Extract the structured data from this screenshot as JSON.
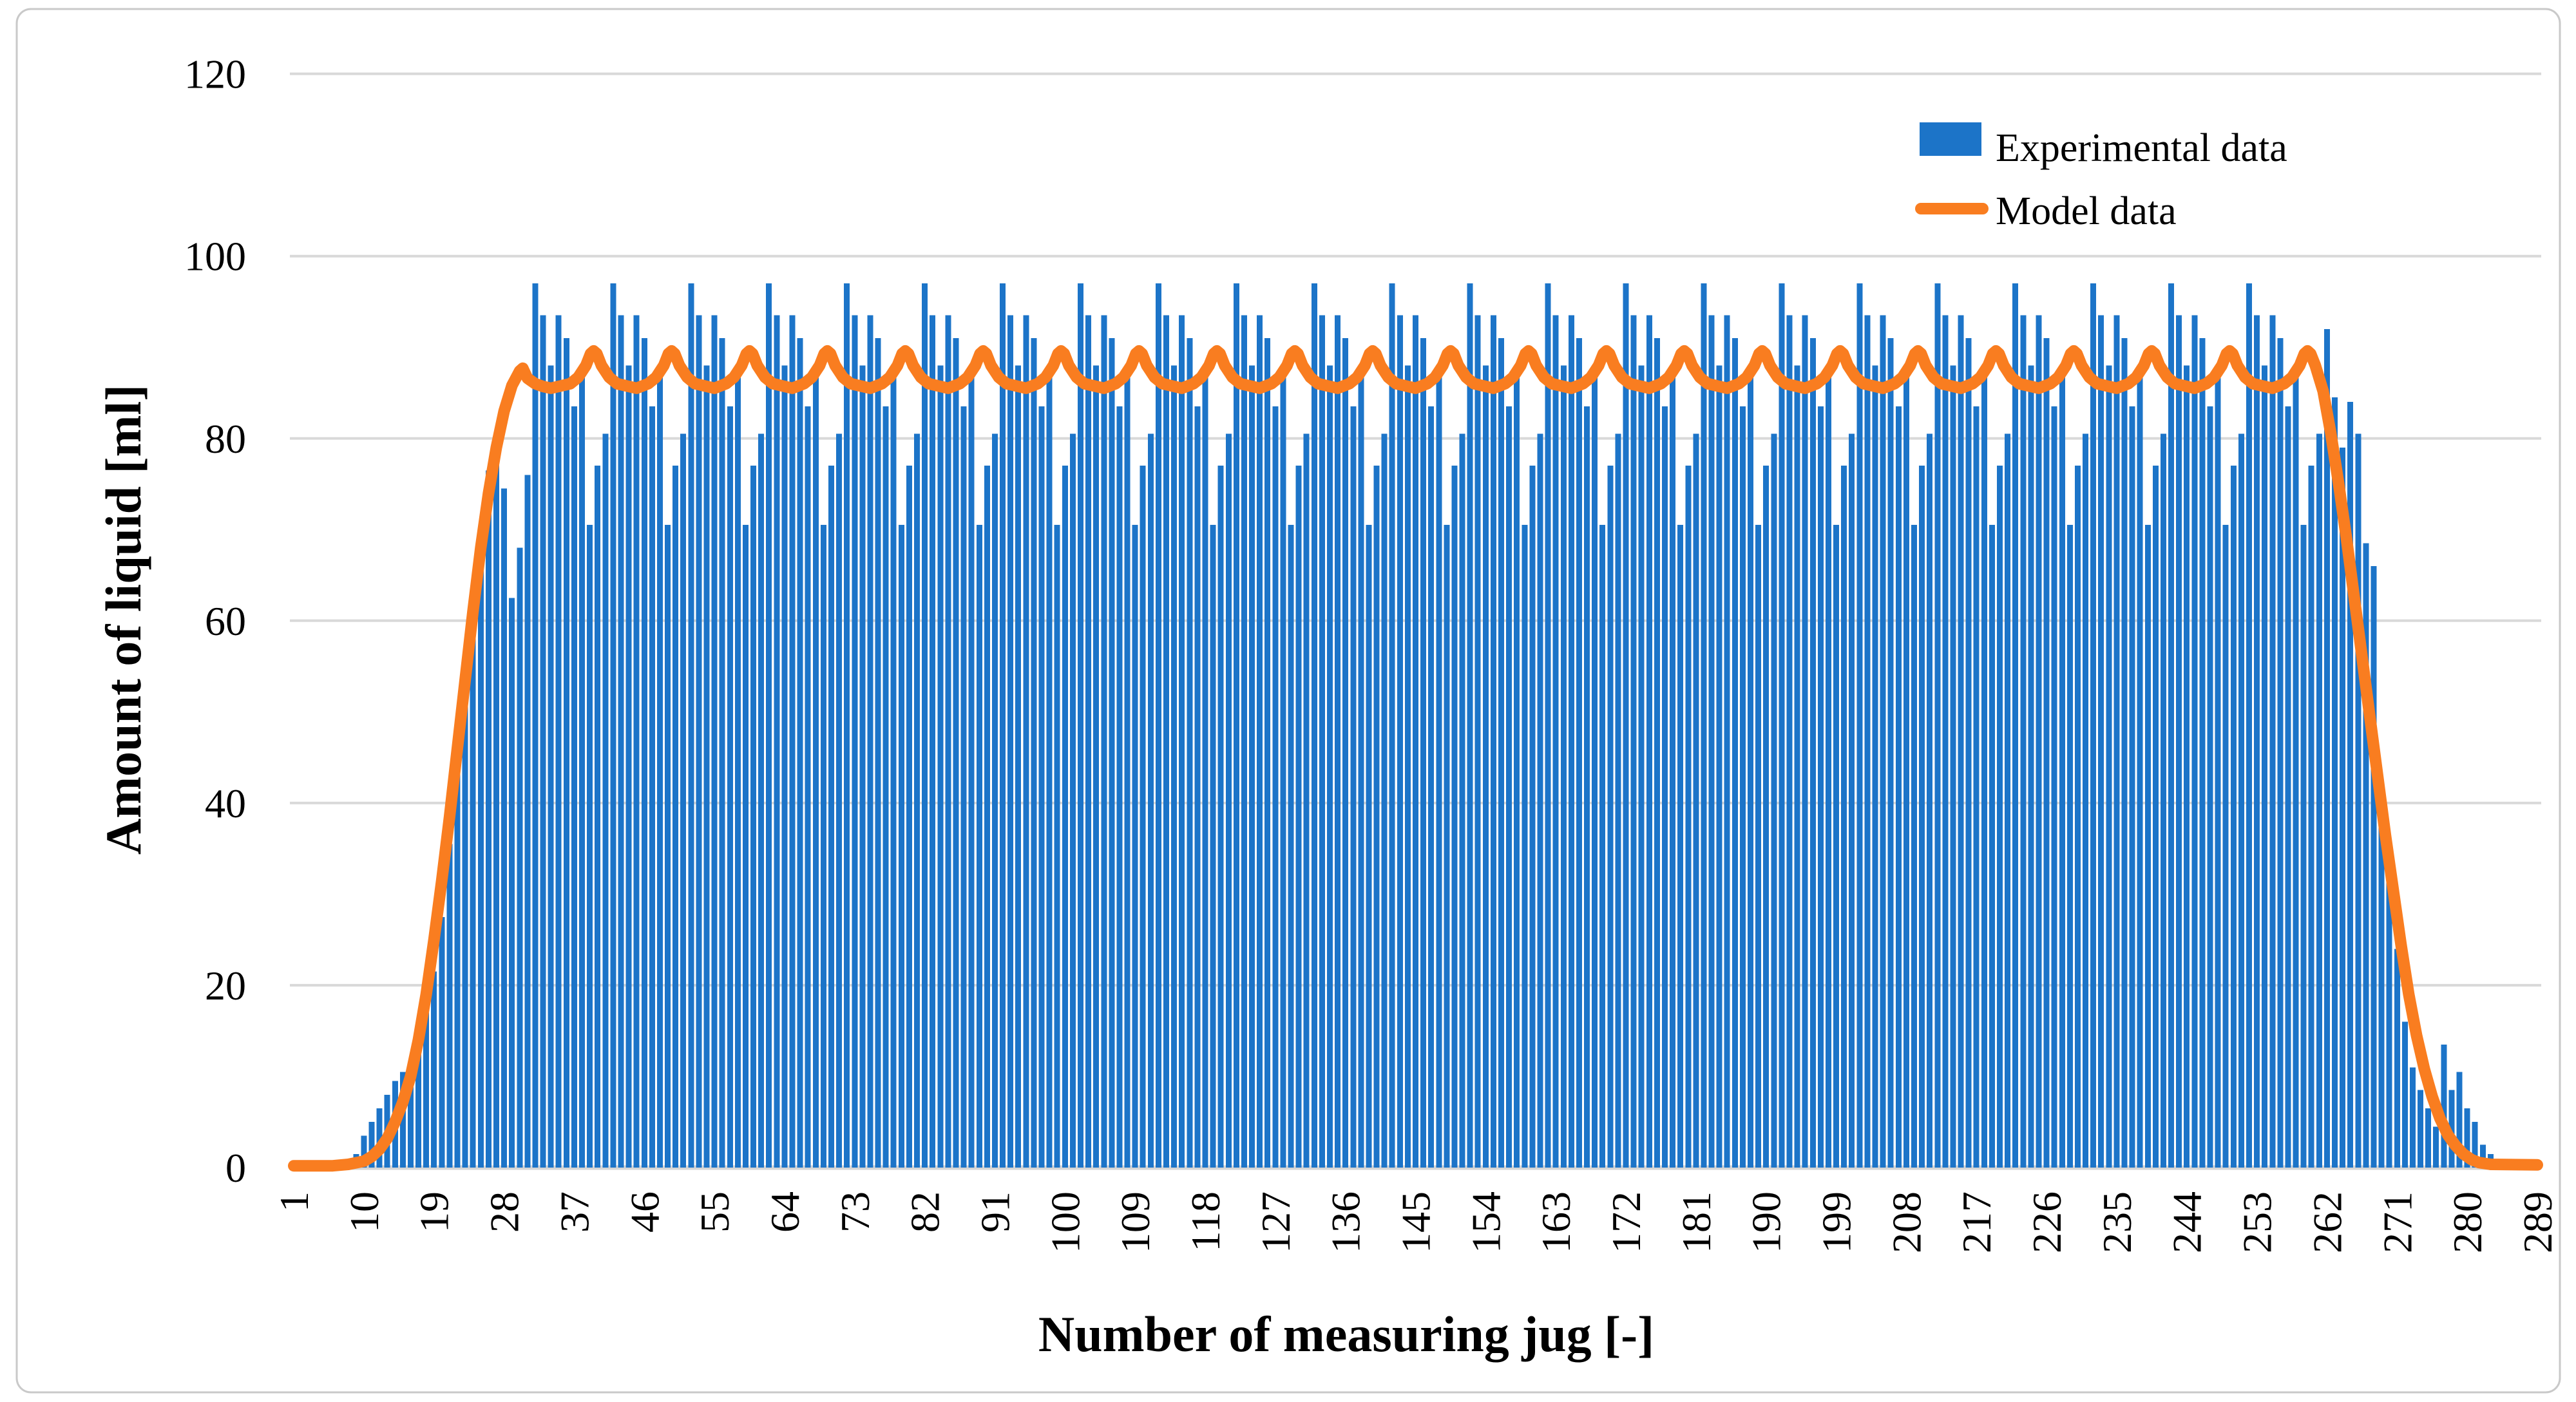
{
  "chart_data": {
    "type": "bar+line",
    "title": "",
    "xlabel": "Number of measuring jug [-]",
    "ylabel": "Amount of liquid [ml]",
    "x_axis": {
      "label": "Number of measuring jug [-]",
      "start": 1,
      "end": 289,
      "tick_start": 1,
      "tick_step": 9,
      "tick_end": 289
    },
    "y_axis": {
      "label": "Amount of liquid [ml]",
      "min": 0,
      "max": 120,
      "ticks": [
        0,
        20,
        40,
        60,
        80,
        100,
        120
      ]
    },
    "grid": true,
    "gridline_color": "#D9D9D9",
    "axis_line_color": "#D6D6D6",
    "border_color": "#C9C9C9",
    "legend_position": "top-right",
    "legend": [
      {
        "label": "Experimental data",
        "marker": "bar-swatch"
      },
      {
        "label": "Model data",
        "marker": "line-swatch"
      }
    ],
    "series": [
      {
        "name": "Experimental data",
        "type": "bar",
        "color": "#1C74C8",
        "x_start": 1,
        "values_pre_jugs_1_to_31": [
          0,
          0,
          0,
          0,
          0,
          0,
          0,
          0,
          1.5,
          3.5,
          5,
          6.5,
          8,
          9.5,
          10.5,
          11.5,
          13.5,
          17,
          21.5,
          27.5,
          35.5,
          44.5,
          53,
          62,
          70,
          76.5,
          79,
          74.5,
          62.5,
          68,
          76
        ],
        "plateau_cycle_start": 32,
        "plateau_cycle_repeats": 23,
        "plateau_cycle": [
          97,
          93.5,
          88,
          93.5,
          91,
          83.5,
          87.5,
          70.5,
          77,
          80.5
        ],
        "values_post_jugs_262_to_289": [
          92,
          84.5,
          79,
          84,
          80.5,
          68.5,
          66,
          42,
          33,
          24,
          16,
          11,
          8.5,
          6.5,
          4.5,
          13.5,
          8.5,
          10.5,
          6.5,
          5,
          2.5,
          1.5,
          0.8,
          0,
          0,
          0,
          0,
          0
        ]
      },
      {
        "name": "Model data",
        "type": "line",
        "color": "#F97D20",
        "stroke_width": 18,
        "rise_points": [
          [
            1,
            0.2
          ],
          [
            6,
            0.2
          ],
          [
            8,
            0.35
          ],
          [
            10,
            0.7
          ],
          [
            11,
            1.2
          ],
          [
            12,
            2
          ],
          [
            13,
            3.2
          ],
          [
            14,
            5
          ],
          [
            15,
            7.2
          ],
          [
            16,
            10
          ],
          [
            17,
            14
          ],
          [
            18,
            19
          ],
          [
            19,
            25
          ],
          [
            20,
            31.5
          ],
          [
            21,
            38.5
          ],
          [
            22,
            46
          ],
          [
            23,
            53.5
          ],
          [
            24,
            61
          ],
          [
            25,
            68
          ],
          [
            26,
            74
          ],
          [
            27,
            79
          ],
          [
            28,
            83
          ],
          [
            29,
            85.8
          ],
          [
            30,
            87.4
          ],
          [
            30.4,
            87.7
          ],
          [
            31,
            86.6
          ],
          [
            32,
            86
          ],
          [
            33,
            85.7
          ],
          [
            34,
            85.5
          ]
        ],
        "plateau_base": 85.5,
        "bump_peak": 89.6,
        "bump_centers": [
          39.5,
          49.5,
          59.5,
          69.5,
          79.5,
          89.5,
          99.5,
          109.5,
          119.5,
          129.5,
          139.5,
          149.5,
          159.5,
          169.5,
          179.5,
          189.5,
          199.5,
          209.5,
          219.5,
          229.5,
          239.5,
          249.5,
          259.5
        ],
        "bump_profile": [
          [
            -3,
            86
          ],
          [
            -2,
            86.7
          ],
          [
            -1,
            88
          ],
          [
            -0.4,
            89.3
          ],
          [
            0,
            89.6
          ],
          [
            0.4,
            89.3
          ],
          [
            1,
            88
          ],
          [
            2,
            86.7
          ],
          [
            3,
            86
          ],
          [
            5.5,
            85.5
          ]
        ],
        "fall_points": [
          [
            260.5,
            88
          ],
          [
            261.5,
            85.2
          ],
          [
            262.5,
            80.5
          ],
          [
            263.5,
            75
          ],
          [
            264.5,
            69
          ],
          [
            265.5,
            62.5
          ],
          [
            266.5,
            56
          ],
          [
            267.5,
            49.5
          ],
          [
            268.5,
            43
          ],
          [
            269.5,
            36.5
          ],
          [
            270.5,
            30.5
          ],
          [
            271.5,
            24.5
          ],
          [
            272.5,
            19
          ],
          [
            273.5,
            14.5
          ],
          [
            274.5,
            10.8
          ],
          [
            275.5,
            7.8
          ],
          [
            276.5,
            5.4
          ],
          [
            277.5,
            3.6
          ],
          [
            278.5,
            2.4
          ],
          [
            279.5,
            1.5
          ],
          [
            280.5,
            0.9
          ],
          [
            281.5,
            0.55
          ],
          [
            283,
            0.35
          ],
          [
            289,
            0.3
          ]
        ]
      }
    ]
  }
}
